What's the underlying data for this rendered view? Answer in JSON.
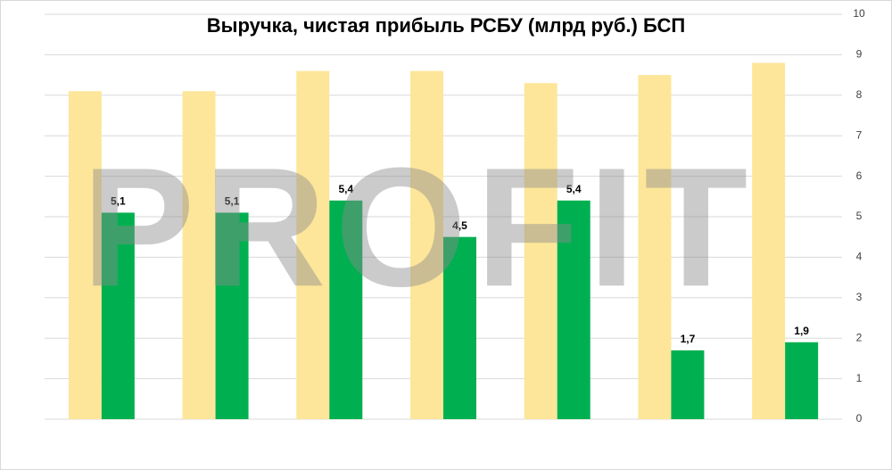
{
  "chart_data": {
    "type": "bar",
    "title": "Выручка, чистая прибыль РСБУ (млрд руб.) БСП",
    "watermark": "PROFIT",
    "categories": [
      null,
      null,
      null,
      null,
      null,
      null,
      null
    ],
    "series": [
      {
        "color": "#fde699",
        "values": [
          8.1,
          8.1,
          8.6,
          8.6,
          8.3,
          8.5,
          8.8
        ]
      },
      {
        "color": "#00b050",
        "values": [
          5.1,
          5.1,
          5.4,
          4.5,
          5.4,
          1.7,
          1.9
        ],
        "value_labels": [
          "5,1",
          "5,1",
          "5,4",
          "4,5",
          "5,4",
          "1,7",
          "1,9"
        ]
      }
    ],
    "ylim": [
      0,
      10
    ],
    "yticks": [
      0,
      1,
      2,
      3,
      4,
      5,
      6,
      7,
      8,
      9,
      10
    ],
    "grid": true,
    "y_axis_side": "right"
  }
}
